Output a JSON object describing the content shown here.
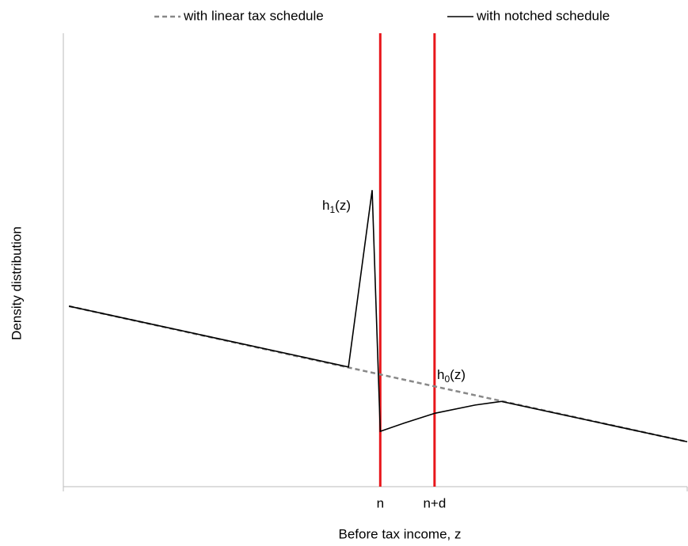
{
  "chart_data": {
    "type": "line",
    "xlabel": "Before tax income, z",
    "ylabel": "Density distribution",
    "xlim": [
      0,
      100
    ],
    "ylim": [
      0,
      100
    ],
    "xticks": [
      {
        "value": 50.8,
        "label": "n"
      },
      {
        "value": 59.5,
        "label": "n+d"
      }
    ],
    "marker_color": "#e8161b",
    "series": [
      {
        "name": "with linear tax schedule",
        "color": "#888888",
        "dashed": true,
        "x": [
          0.9,
          100
        ],
        "values": [
          39.8,
          9.9
        ]
      },
      {
        "name": "with notched schedule",
        "color": "#000000",
        "dashed": false,
        "x": [
          0.9,
          45.7,
          49.5,
          50.8,
          54.6,
          59.6,
          66.0,
          70.2,
          100
        ],
        "values": [
          39.8,
          26.4,
          65.4,
          12.2,
          14.0,
          16.2,
          18.0,
          18.8,
          9.9
        ]
      }
    ],
    "annotations": [
      {
        "base": "h",
        "sub": "1",
        "suffix": "(z)"
      },
      {
        "base": "h",
        "sub": "0",
        "suffix": "(z)"
      }
    ]
  }
}
